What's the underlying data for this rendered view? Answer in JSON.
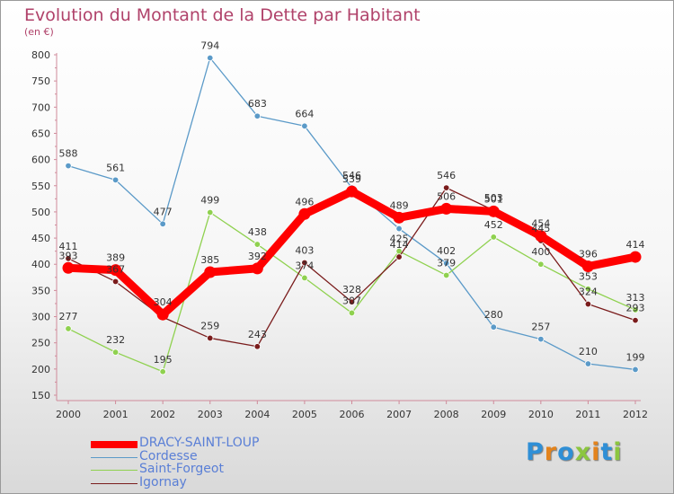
{
  "title": "Evolution du Montant de la Dette par Habitant",
  "unit_label": "(en €)",
  "logo_text": "Proxiti",
  "chart_data": {
    "type": "line",
    "title": "Evolution du Montant de la Dette par Habitant",
    "ylabel": "(en €)",
    "xlabel": "",
    "ylim": [
      150,
      800
    ],
    "yticks": [
      150,
      200,
      250,
      300,
      350,
      400,
      450,
      500,
      550,
      600,
      650,
      700,
      750,
      800
    ],
    "x": [
      "2000",
      "2001",
      "2002",
      "2003",
      "2004",
      "2005",
      "2006",
      "2007",
      "2008",
      "2009",
      "2010",
      "2011",
      "2012"
    ],
    "grid": false,
    "legend_position": "bottom-left",
    "series": [
      {
        "name": "DRACY-SAINT-LOUP",
        "color": "#ff0000",
        "values": [
          393,
          389,
          304,
          385,
          392,
          496,
          539,
          489,
          506,
          501,
          454,
          396,
          414
        ]
      },
      {
        "name": "Cordesse",
        "color": "#5b9ac8",
        "values": [
          588,
          561,
          477,
          794,
          683,
          664,
          546,
          468,
          402,
          280,
          257,
          210,
          199
        ]
      },
      {
        "name": "Saint-Forgeot",
        "color": "#8fd14f",
        "values": [
          277,
          232,
          195,
          499,
          438,
          374,
          307,
          425,
          379,
          452,
          400,
          353,
          313
        ]
      },
      {
        "name": "Igornay",
        "color": "#7a1c1c",
        "values": [
          411,
          367,
          299,
          259,
          243,
          403,
          328,
          414,
          546,
          503,
          445,
          324,
          293
        ]
      }
    ],
    "point_labels": [
      {
        "series": 0,
        "labels": [
          "393",
          "389",
          "304",
          "385",
          "392",
          "496",
          "539",
          "489",
          "506",
          "501",
          "454",
          "396",
          "414"
        ]
      },
      {
        "series": 1,
        "labels": [
          "588",
          "561",
          "477",
          "794",
          "683",
          "664",
          "546",
          "",
          "402",
          "280",
          "257",
          "210",
          "199"
        ]
      },
      {
        "series": 2,
        "labels": [
          "277",
          "232",
          "195",
          "499",
          "438",
          "374",
          "307",
          "425",
          "379",
          "452",
          "400",
          "353",
          "313"
        ]
      },
      {
        "series": 3,
        "labels": [
          "411",
          "367",
          "",
          "259",
          "243",
          "403",
          "328",
          "414",
          "546",
          "503",
          "445",
          "324",
          "293"
        ]
      }
    ]
  }
}
